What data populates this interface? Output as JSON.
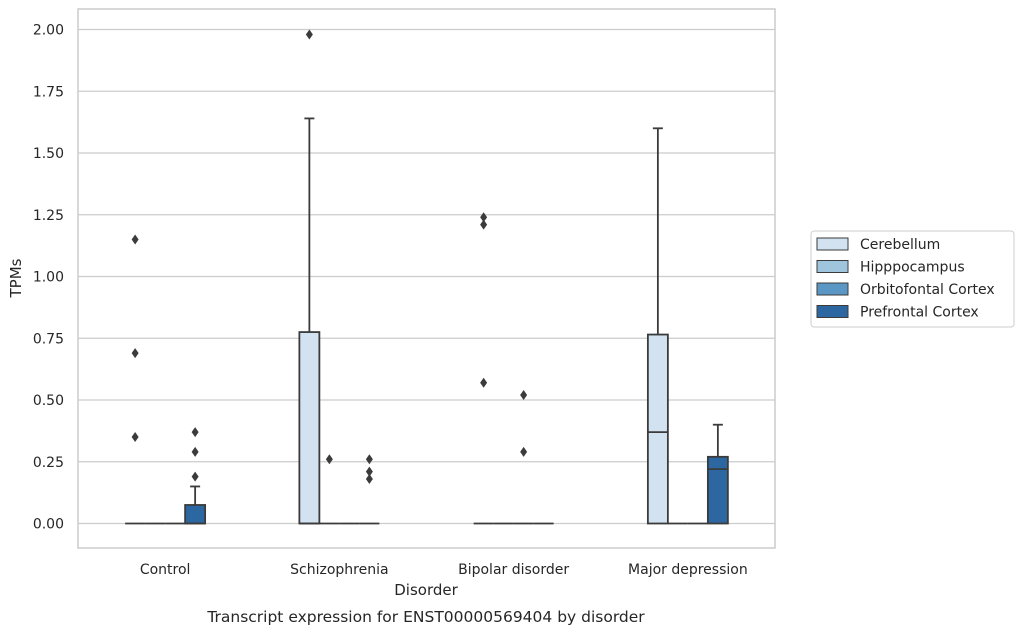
{
  "chart_data": {
    "type": "boxplot",
    "caption": "Transcript expression for ENST00000569404 by disorder",
    "xlabel": "Disorder",
    "ylabel": "TPMs",
    "ylim": [
      -0.1,
      2.08
    ],
    "yticks": [
      "0.00",
      "0.25",
      "0.50",
      "0.75",
      "1.00",
      "1.25",
      "1.50",
      "1.75",
      "2.00"
    ],
    "ytick_values": [
      0,
      0.25,
      0.5,
      0.75,
      1.0,
      1.25,
      1.5,
      1.75,
      2.0
    ],
    "grid": true,
    "legend_position": "right",
    "categories": [
      "Control",
      "Schizophrenia",
      "Bipolar disorder",
      "Major depression"
    ],
    "series": [
      {
        "name": "Cerebellum",
        "color": "#d2e2f1",
        "boxes": [
          {
            "q1": 0,
            "median": 0,
            "q3": 0,
            "whisker_low": 0,
            "whisker_high": 0,
            "outliers": [
              0.35,
              0.69,
              1.15
            ]
          },
          {
            "q1": 0,
            "median": 0,
            "q3": 0.775,
            "whisker_low": 0,
            "whisker_high": 1.64,
            "outliers": [
              1.98
            ]
          },
          {
            "q1": 0,
            "median": 0,
            "q3": 0,
            "whisker_low": 0,
            "whisker_high": 0,
            "outliers": [
              0.57,
              1.21,
              1.24
            ]
          },
          {
            "q1": 0,
            "median": 0.37,
            "q3": 0.765,
            "whisker_low": 0,
            "whisker_high": 1.6,
            "outliers": []
          }
        ]
      },
      {
        "name": "Hipppocampus",
        "color": "#9fc4dd",
        "boxes": [
          {
            "q1": 0,
            "median": 0,
            "q3": 0,
            "whisker_low": 0,
            "whisker_high": 0,
            "outliers": []
          },
          {
            "q1": 0,
            "median": 0,
            "q3": 0,
            "whisker_low": 0,
            "whisker_high": 0,
            "outliers": [
              0.26
            ]
          },
          {
            "q1": 0,
            "median": 0,
            "q3": 0,
            "whisker_low": 0,
            "whisker_high": 0,
            "outliers": []
          },
          {
            "q1": 0,
            "median": 0,
            "q3": 0,
            "whisker_low": 0,
            "whisker_high": 0,
            "outliers": []
          }
        ]
      },
      {
        "name": "Orbitofontal Cortex",
        "color": "#5b97c4",
        "boxes": [
          {
            "q1": 0,
            "median": 0,
            "q3": 0,
            "whisker_low": 0,
            "whisker_high": 0,
            "outliers": []
          },
          {
            "q1": 0,
            "median": 0,
            "q3": 0,
            "whisker_low": 0,
            "whisker_high": 0,
            "outliers": []
          },
          {
            "q1": 0,
            "median": 0,
            "q3": 0,
            "whisker_low": 0,
            "whisker_high": 0,
            "outliers": [
              0.29,
              0.52
            ]
          },
          {
            "q1": 0,
            "median": 0,
            "q3": 0,
            "whisker_low": 0,
            "whisker_high": 0,
            "outliers": []
          }
        ]
      },
      {
        "name": "Prefrontal Cortex",
        "color": "#2c67a2",
        "boxes": [
          {
            "q1": 0,
            "median": 0,
            "q3": 0.075,
            "whisker_low": 0,
            "whisker_high": 0.15,
            "outliers": [
              0.19,
              0.29,
              0.37
            ]
          },
          {
            "q1": 0,
            "median": 0,
            "q3": 0,
            "whisker_low": 0,
            "whisker_high": 0,
            "outliers": [
              0.18,
              0.21,
              0.26
            ]
          },
          {
            "q1": 0,
            "median": 0,
            "q3": 0,
            "whisker_low": 0,
            "whisker_high": 0,
            "outliers": []
          },
          {
            "q1": 0,
            "median": 0.22,
            "q3": 0.27,
            "whisker_low": 0,
            "whisker_high": 0.4,
            "outliers": []
          }
        ]
      }
    ]
  }
}
